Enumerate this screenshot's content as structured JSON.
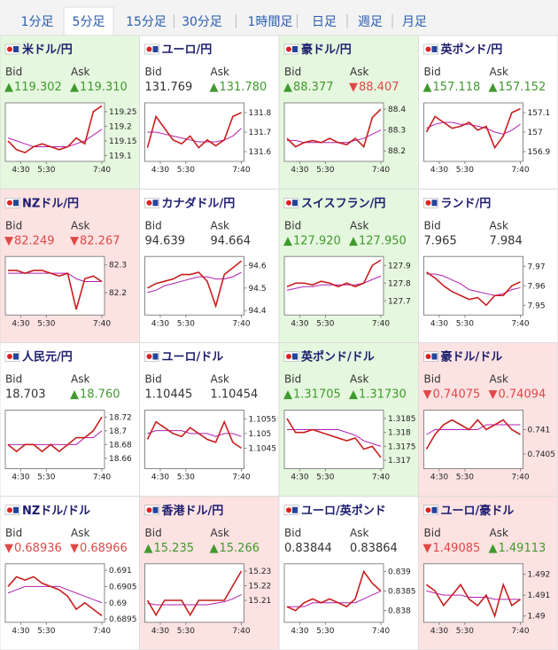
{
  "tabs": [
    "1分足",
    "5分足",
    "15分足",
    "30分足",
    "1時間足",
    "日足",
    "週足",
    "月足"
  ],
  "active_tab": 1,
  "bid_label": "Bid",
  "ask_label": "Ask",
  "time_axis": {
    "xlim": [
      240,
      460
    ],
    "xticks": [
      {
        "value": 270,
        "label": "4:30"
      },
      {
        "value": 330,
        "label": "5:30"
      },
      {
        "value": 460,
        "label": "7:40"
      }
    ],
    "x": [
      240,
      260,
      280,
      300,
      320,
      340,
      360,
      380,
      400,
      420,
      440,
      460
    ]
  },
  "tiles": [
    {
      "title": "米ドル/円",
      "bid": "119.302",
      "ask": "119.310",
      "bid_dir": "up",
      "ask_dir": "up",
      "background": "#e6f7df",
      "chart_data": {
        "type": "line",
        "ylim": [
          119.08,
          119.28
        ],
        "yticks": [
          119.1,
          119.15,
          119.2,
          119.25
        ],
        "series": [
          {
            "color": "#c81e1e",
            "values": [
              119.15,
              119.12,
              119.11,
              119.13,
              119.14,
              119.13,
              119.12,
              119.13,
              119.16,
              119.14,
              119.25,
              119.27
            ]
          },
          {
            "color": "#b020b0",
            "values": [
              119.16,
              119.15,
              119.14,
              119.13,
              119.13,
              119.13,
              119.13,
              119.13,
              119.14,
              119.15,
              119.17,
              119.19
            ]
          }
        ]
      }
    },
    {
      "title": "ユーロ/円",
      "bid": "131.769",
      "ask": "131.780",
      "bid_dir": null,
      "ask_dir": "up",
      "background": "#ffffff",
      "chart_data": {
        "type": "line",
        "ylim": [
          131.55,
          131.85
        ],
        "yticks": [
          131.6,
          131.7,
          131.8
        ],
        "series": [
          {
            "color": "#c81e1e",
            "values": [
              131.62,
              131.78,
              131.72,
              131.66,
              131.64,
              131.68,
              131.62,
              131.66,
              131.63,
              131.66,
              131.78,
              131.8
            ]
          },
          {
            "color": "#b020b0",
            "values": [
              131.7,
              131.7,
              131.69,
              131.68,
              131.67,
              131.66,
              131.65,
              131.65,
              131.65,
              131.66,
              131.68,
              131.72
            ]
          }
        ]
      }
    },
    {
      "title": "豪ドル/円",
      "bid": "88.377",
      "ask": "88.407",
      "bid_dir": "up",
      "ask_dir": "down",
      "background": "#e6f7df",
      "chart_data": {
        "type": "line",
        "ylim": [
          88.15,
          88.43
        ],
        "yticks": [
          88.2,
          88.3,
          88.4
        ],
        "series": [
          {
            "color": "#c81e1e",
            "values": [
              88.26,
              88.22,
              88.24,
              88.25,
              88.24,
              88.26,
              88.24,
              88.23,
              88.26,
              88.22,
              88.36,
              88.4
            ]
          },
          {
            "color": "#b020b0",
            "values": [
              88.25,
              88.25,
              88.24,
              88.24,
              88.24,
              88.24,
              88.24,
              88.24,
              88.25,
              88.26,
              88.28,
              88.3
            ]
          }
        ]
      }
    },
    {
      "title": "英ポンド/円",
      "bid": "157.118",
      "ask": "157.152",
      "bid_dir": "up",
      "ask_dir": "up",
      "background": "#ffffff",
      "chart_data": {
        "type": "line",
        "ylim": [
          156.85,
          157.15
        ],
        "yticks": [
          156.9,
          157,
          157.1
        ],
        "series": [
          {
            "color": "#c81e1e",
            "values": [
              157.0,
              157.08,
              157.05,
              157.02,
              157.03,
              157.05,
              157.01,
              157.03,
              156.92,
              156.98,
              157.1,
              157.12
            ]
          },
          {
            "color": "#b020b0",
            "values": [
              157.02,
              157.04,
              157.05,
              157.05,
              157.04,
              157.04,
              157.03,
              157.02,
              157.0,
              156.99,
              157.01,
              157.04
            ]
          }
        ]
      }
    },
    {
      "title": "NZドル/円",
      "bid": "82.249",
      "ask": "82.267",
      "bid_dir": "down",
      "ask_dir": "down",
      "background": "#fde2e2",
      "chart_data": {
        "type": "line",
        "ylim": [
          82.12,
          82.33
        ],
        "yticks": [
          82.2,
          82.3
        ],
        "series": [
          {
            "color": "#c81e1e",
            "values": [
              82.28,
              82.28,
              82.27,
              82.28,
              82.28,
              82.27,
              82.26,
              82.27,
              82.14,
              82.25,
              82.26,
              82.24
            ]
          },
          {
            "color": "#b020b0",
            "values": [
              82.27,
              82.27,
              82.27,
              82.27,
              82.27,
              82.27,
              82.27,
              82.27,
              82.25,
              82.24,
              82.24,
              82.24
            ]
          }
        ]
      }
    },
    {
      "title": "カナダドル/円",
      "bid": "94.639",
      "ask": "94.664",
      "bid_dir": null,
      "ask_dir": null,
      "background": "#ffffff",
      "chart_data": {
        "type": "line",
        "ylim": [
          94.38,
          94.64
        ],
        "yticks": [
          94.4,
          94.5,
          94.6
        ],
        "series": [
          {
            "color": "#c81e1e",
            "values": [
              94.5,
              94.52,
              94.53,
              94.54,
              94.56,
              94.56,
              94.57,
              94.53,
              94.42,
              94.56,
              94.59,
              94.62
            ]
          },
          {
            "color": "#b020b0",
            "values": [
              94.48,
              94.49,
              94.51,
              94.52,
              94.53,
              94.54,
              94.55,
              94.55,
              94.54,
              94.54,
              94.55,
              94.57
            ]
          }
        ]
      }
    },
    {
      "title": "スイスフラン/円",
      "bid": "127.920",
      "ask": "127.950",
      "bid_dir": "up",
      "ask_dir": "up",
      "background": "#e6f7df",
      "chart_data": {
        "type": "line",
        "ylim": [
          127.62,
          127.95
        ],
        "yticks": [
          127.7,
          127.8,
          127.9
        ],
        "series": [
          {
            "color": "#c81e1e",
            "values": [
              127.78,
              127.8,
              127.8,
              127.79,
              127.81,
              127.8,
              127.78,
              127.8,
              127.78,
              127.8,
              127.9,
              127.93
            ]
          },
          {
            "color": "#b020b0",
            "values": [
              127.76,
              127.77,
              127.78,
              127.78,
              127.79,
              127.79,
              127.79,
              127.79,
              127.79,
              127.8,
              127.82,
              127.84
            ]
          }
        ]
      }
    },
    {
      "title": "ランド/円",
      "bid": "7.965",
      "ask": "7.984",
      "bid_dir": null,
      "ask_dir": null,
      "background": "#ffffff",
      "chart_data": {
        "type": "line",
        "ylim": [
          7.945,
          7.975
        ],
        "yticks": [
          7.95,
          7.96,
          7.97
        ],
        "series": [
          {
            "color": "#c81e1e",
            "values": [
              7.967,
              7.964,
              7.96,
              7.957,
              7.955,
              7.953,
              7.954,
              7.95,
              7.955,
              7.955,
              7.96,
              7.962
            ]
          },
          {
            "color": "#b020b0",
            "values": [
              7.966,
              7.966,
              7.965,
              7.963,
              7.961,
              7.958,
              7.957,
              7.956,
              7.955,
              7.956,
              7.958,
              7.959
            ]
          }
        ]
      }
    },
    {
      "title": "人民元/円",
      "bid": "18.703",
      "ask": "18.760",
      "bid_dir": null,
      "ask_dir": "up",
      "background": "#ffffff",
      "chart_data": {
        "type": "line",
        "ylim": [
          18.645,
          18.73
        ],
        "yticks": [
          18.66,
          18.68,
          18.7,
          18.72
        ],
        "series": [
          {
            "color": "#c81e1e",
            "values": [
              18.68,
              18.67,
              18.68,
              18.68,
              18.67,
              18.68,
              18.67,
              18.68,
              18.69,
              18.69,
              18.7,
              18.72
            ]
          },
          {
            "color": "#b020b0",
            "values": [
              18.68,
              18.68,
              18.68,
              18.68,
              18.68,
              18.68,
              18.68,
              18.68,
              18.68,
              18.69,
              18.69,
              18.7
            ]
          }
        ]
      }
    },
    {
      "title": "ユーロ/ドル",
      "bid": "1.10445",
      "ask": "1.10454",
      "bid_dir": null,
      "ask_dir": null,
      "background": "#ffffff",
      "chart_data": {
        "type": "line",
        "ylim": [
          1.1038,
          1.1058
        ],
        "yticks": [
          1.1045,
          1.105,
          1.1055
        ],
        "series": [
          {
            "color": "#c81e1e",
            "values": [
              1.1048,
              1.1054,
              1.1052,
              1.105,
              1.1049,
              1.1052,
              1.105,
              1.1048,
              1.1047,
              1.1054,
              1.1047,
              1.1045
            ]
          },
          {
            "color": "#b020b0",
            "values": [
              1.105,
              1.1051,
              1.1051,
              1.1051,
              1.1051,
              1.105,
              1.105,
              1.105,
              1.1049,
              1.105,
              1.105,
              1.1049
            ]
          }
        ]
      }
    },
    {
      "title": "英ポンド/ドル",
      "bid": "1.31705",
      "ask": "1.31730",
      "bid_dir": "up",
      "ask_dir": "up",
      "background": "#e6f7df",
      "chart_data": {
        "type": "line",
        "ylim": [
          1.3167,
          1.3188
        ],
        "yticks": [
          1.317,
          1.3175,
          1.318,
          1.3185
        ],
        "series": [
          {
            "color": "#c81e1e",
            "values": [
              1.3185,
              1.318,
              1.318,
              1.3181,
              1.318,
              1.3179,
              1.3178,
              1.3177,
              1.3178,
              1.3174,
              1.3175,
              1.3171
            ]
          },
          {
            "color": "#b020b0",
            "values": [
              1.3181,
              1.3181,
              1.3181,
              1.3181,
              1.3181,
              1.3181,
              1.3181,
              1.318,
              1.3179,
              1.3177,
              1.3176,
              1.3175
            ]
          }
        ]
      }
    },
    {
      "title": "豪ドル/ドル",
      "bid": "0.74075",
      "ask": "0.74094",
      "bid_dir": "down",
      "ask_dir": "down",
      "background": "#fde2e2",
      "chart_data": {
        "type": "line",
        "ylim": [
          0.7402,
          0.7414
        ],
        "yticks": [
          0.7405,
          0.741
        ],
        "series": [
          {
            "color": "#c81e1e",
            "values": [
              0.7406,
              0.7409,
              0.7411,
              0.7412,
              0.7411,
              0.741,
              0.7412,
              0.741,
              0.7411,
              0.7412,
              0.741,
              0.7409
            ]
          },
          {
            "color": "#b020b0",
            "values": [
              0.7409,
              0.741,
              0.741,
              0.741,
              0.741,
              0.741,
              0.741,
              0.7411,
              0.7411,
              0.7411,
              0.7411,
              0.7411
            ]
          }
        ]
      }
    },
    {
      "title": "NZドル/ドル",
      "bid": "0.68936",
      "ask": "0.68966",
      "bid_dir": "down",
      "ask_dir": "down",
      "background": "#ffffff",
      "chart_data": {
        "type": "line",
        "ylim": [
          0.6894,
          0.6912
        ],
        "yticks": [
          0.6895,
          0.69,
          0.6905,
          0.691
        ],
        "series": [
          {
            "color": "#c81e1e",
            "values": [
              0.6905,
              0.6908,
              0.6907,
              0.6908,
              0.6906,
              0.6905,
              0.6904,
              0.6902,
              0.6898,
              0.69,
              0.6898,
              0.6896
            ]
          },
          {
            "color": "#b020b0",
            "values": [
              0.6903,
              0.6904,
              0.6905,
              0.6905,
              0.6905,
              0.6905,
              0.6905,
              0.6904,
              0.6903,
              0.6902,
              0.6901,
              0.69
            ]
          }
        ]
      }
    },
    {
      "title": "香港ドル/円",
      "bid": "15.235",
      "ask": "15.266",
      "bid_dir": "up",
      "ask_dir": "up",
      "background": "#fde2e2",
      "chart_data": {
        "type": "line",
        "ylim": [
          15.195,
          15.235
        ],
        "yticks": [
          15.21,
          15.22,
          15.23
        ],
        "series": [
          {
            "color": "#c81e1e",
            "values": [
              15.21,
              15.2,
              15.21,
              15.21,
              15.21,
              15.2,
              15.21,
              15.21,
              15.21,
              15.21,
              15.22,
              15.23
            ]
          },
          {
            "color": "#b020b0",
            "values": [
              15.208,
              15.207,
              15.207,
              15.207,
              15.207,
              15.207,
              15.207,
              15.207,
              15.208,
              15.209,
              15.211,
              15.214
            ]
          }
        ]
      }
    },
    {
      "title": "ユーロ/英ポンド",
      "bid": "0.83844",
      "ask": "0.83864",
      "bid_dir": null,
      "ask_dir": null,
      "background": "#ffffff",
      "chart_data": {
        "type": "line",
        "ylim": [
          0.8377,
          0.8392
        ],
        "yticks": [
          0.838,
          0.8385,
          0.839
        ],
        "series": [
          {
            "color": "#c81e1e",
            "values": [
              0.8381,
              0.838,
              0.8382,
              0.8383,
              0.8382,
              0.8383,
              0.8382,
              0.8381,
              0.8383,
              0.839,
              0.8387,
              0.8385
            ]
          },
          {
            "color": "#b020b0",
            "values": [
              0.8381,
              0.8381,
              0.8381,
              0.8382,
              0.8382,
              0.8382,
              0.8382,
              0.8382,
              0.8382,
              0.8383,
              0.8384,
              0.8385
            ]
          }
        ]
      }
    },
    {
      "title": "ユーロ/豪ドル",
      "bid": "1.49085",
      "ask": "1.49113",
      "bid_dir": "down",
      "ask_dir": "up",
      "background": "#fde2e2",
      "chart_data": {
        "type": "line",
        "ylim": [
          1.4897,
          1.4925
        ],
        "yticks": [
          1.49,
          1.491,
          1.492
        ],
        "series": [
          {
            "color": "#c81e1e",
            "values": [
              1.4915,
              1.4912,
              1.4905,
              1.491,
              1.4915,
              1.4908,
              1.4905,
              1.491,
              1.49,
              1.4915,
              1.4905,
              1.4908
            ]
          },
          {
            "color": "#b020b0",
            "values": [
              1.4912,
              1.4911,
              1.491,
              1.491,
              1.491,
              1.4909,
              1.4909,
              1.4909,
              1.4908,
              1.4908,
              1.4908,
              1.4908
            ]
          }
        ]
      }
    }
  ]
}
